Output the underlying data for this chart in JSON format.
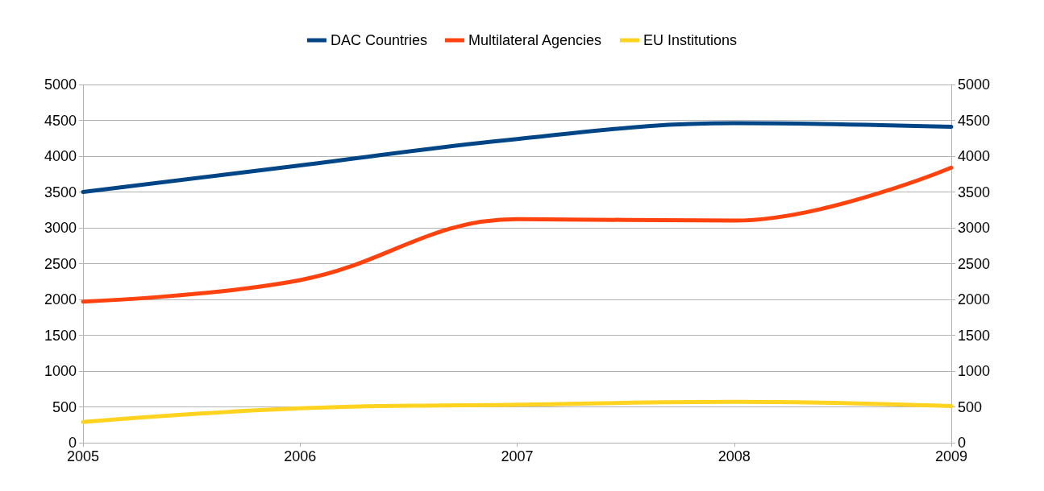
{
  "chart_data": {
    "type": "line",
    "x": [
      2005,
      2006,
      2007,
      2008,
      2009
    ],
    "series": [
      {
        "name": "DAC Countries",
        "color": "#004586",
        "values": [
          3500,
          3870,
          4240,
          4460,
          4410
        ]
      },
      {
        "name": "Multilateral Agencies",
        "color": "#ff420e",
        "values": [
          1970,
          2270,
          3120,
          3100,
          3840
        ]
      },
      {
        "name": "EU Institutions",
        "color": "#ffd320",
        "values": [
          290,
          480,
          530,
          570,
          510
        ]
      }
    ],
    "xlim": [
      2005,
      2009
    ],
    "xticks": [
      2005,
      2006,
      2007,
      2008,
      2009
    ],
    "ylim": [
      0,
      5000
    ],
    "yticks": [
      0,
      500,
      1000,
      1500,
      2000,
      2500,
      3000,
      3500,
      4000,
      4500,
      5000
    ],
    "y2lim": [
      0,
      5000
    ],
    "y2ticks": [
      0,
      500,
      1000,
      1500,
      2000,
      2500,
      3000,
      3500,
      4000,
      4500,
      5000
    ],
    "grid": "y",
    "legend": "top",
    "marker": "none",
    "line_style": "solid"
  }
}
